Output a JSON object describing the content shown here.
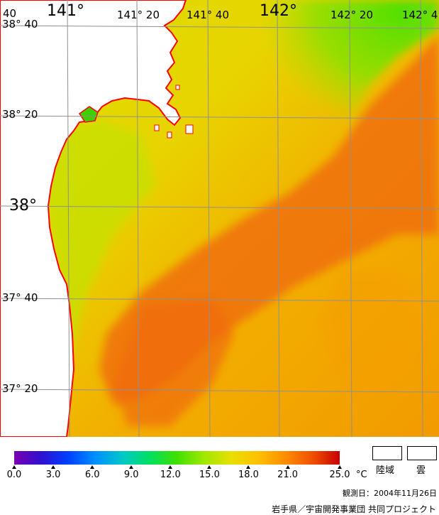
{
  "map": {
    "lon_labels": [
      "141°",
      "141° 20",
      "141° 40",
      "142°",
      "142° 20",
      "142° 4"
    ],
    "lat_labels": [
      "38° 40",
      "38° 20",
      "38°",
      "37° 40",
      "37° 20"
    ],
    "edge_fragment": "40"
  },
  "colorbar": {
    "ticks": [
      "0.0",
      "3.0",
      "6.0",
      "9.0",
      "12.0",
      "15.0",
      "18.0",
      "21.0",
      "25.0"
    ],
    "unit": "°C",
    "gradient_colors": [
      "#7a00b0",
      "#3010d0",
      "#0040ff",
      "#0090ff",
      "#00c8c8",
      "#00e060",
      "#40e000",
      "#a0e800",
      "#e8e000",
      "#ffc000",
      "#ff8c00",
      "#f05000",
      "#c80000"
    ]
  },
  "legend": {
    "land": "陸域",
    "cloud": "雲"
  },
  "observation_date": "観測日：2004年11月26日",
  "credit": "岩手県／宇宙開発事業団 共同プロジェクト",
  "colors": {
    "coastline": "#ff0000",
    "grid": "#909090",
    "land": "#ffffff"
  }
}
